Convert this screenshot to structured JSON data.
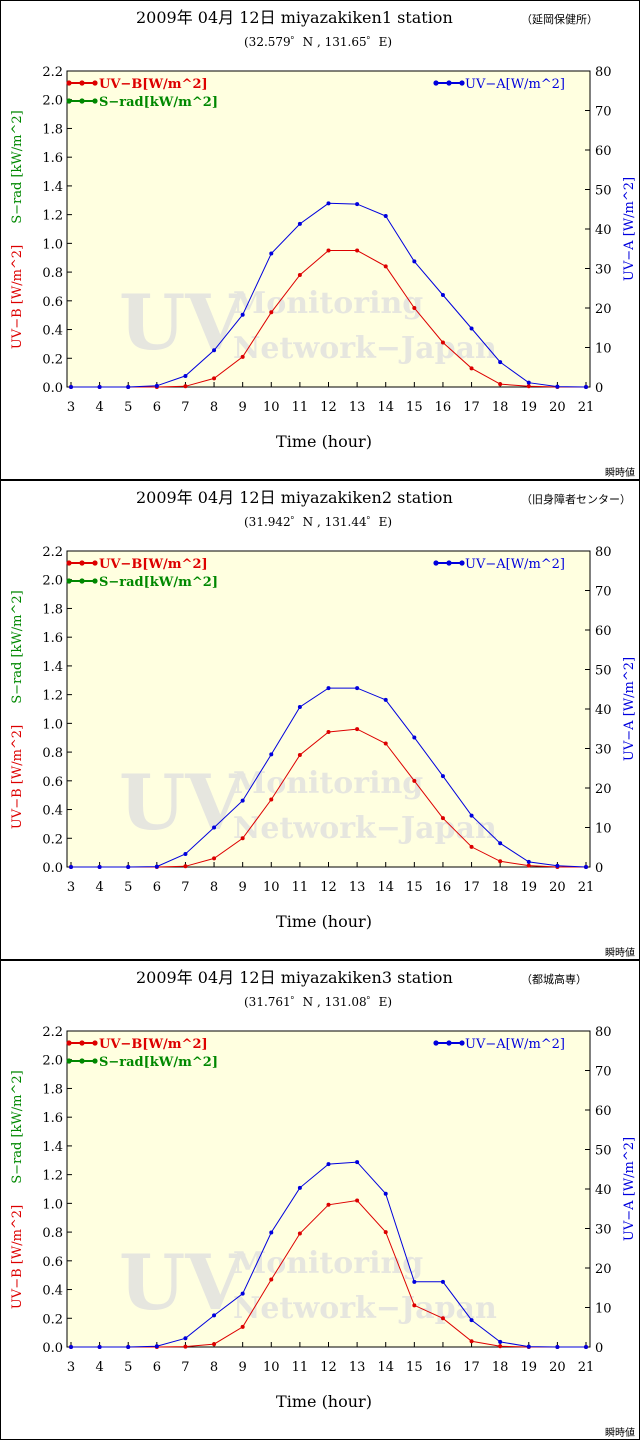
{
  "chart_data": [
    {
      "type": "line",
      "title": "2009年 04月 12日       miyazakiken1 station",
      "site": "（延岡保健所）",
      "coords": "(32.579゜N ,  131.65゜E)",
      "xlabel": "Time (hour)",
      "ylabel_left_uvb": "UV−B [W/m^2]",
      "ylabel_left_srad": "S−rad [kW/m^2]",
      "ylabel_right": "UV−A [W/m^2]",
      "note": "瞬時値",
      "x": [
        3,
        4,
        5,
        6,
        7,
        8,
        9,
        10,
        11,
        12,
        13,
        14,
        15,
        16,
        17,
        18,
        19,
        20,
        21
      ],
      "ylim_left": [
        0,
        2.2
      ],
      "ylim_right": [
        0,
        80
      ],
      "yticks_left": [
        "0.0",
        "0.2",
        "0.4",
        "0.6",
        "0.8",
        "1.0",
        "1.2",
        "1.4",
        "1.6",
        "1.8",
        "2.0",
        "2.2"
      ],
      "yticks_right": [
        "0",
        "10",
        "20",
        "30",
        "40",
        "50",
        "60",
        "70",
        "80"
      ],
      "legend": {
        "uvb": "UV−B[W/m^2]",
        "srad": "S−rad[kW/m^2]",
        "uva": "UV−A[W/m^2]"
      },
      "series": [
        {
          "name": "UV−B[W/m^2]",
          "axis": "left",
          "color": "#dd0000",
          "values": [
            0,
            0,
            0,
            0,
            0.005,
            0.06,
            0.21,
            0.52,
            0.78,
            0.95,
            0.95,
            0.84,
            0.55,
            0.31,
            0.13,
            0.02,
            0.005,
            0,
            0
          ]
        },
        {
          "name": "UV−A[W/m^2]",
          "axis": "right",
          "color": "#0000dd",
          "values": [
            0,
            0,
            0,
            0.3,
            2.8,
            9.3,
            18.3,
            33.8,
            41.3,
            46.5,
            46.3,
            43.3,
            31.8,
            23.3,
            14.8,
            6.3,
            1.1,
            0.1,
            0
          ]
        }
      ],
      "watermark": [
        "UV",
        "Monitoring",
        "Network−Japan"
      ],
      "colors": {
        "plot_bg": "#ffffe0",
        "uvb": "#dd0000",
        "srad": "#008800",
        "uva": "#0000dd"
      }
    },
    {
      "type": "line",
      "title": "2009年 04月 12日       miyazakiken2 station",
      "site": "（旧身障者センター）",
      "coords": "(31.942゜N ,  131.44゜E)",
      "xlabel": "Time (hour)",
      "ylabel_left_uvb": "UV−B [W/m^2]",
      "ylabel_left_srad": "S−rad [kW/m^2]",
      "ylabel_right": "UV−A [W/m^2]",
      "note": "瞬時値",
      "x": [
        3,
        4,
        5,
        6,
        7,
        8,
        9,
        10,
        11,
        12,
        13,
        14,
        15,
        16,
        17,
        18,
        19,
        20,
        21
      ],
      "ylim_left": [
        0,
        2.2
      ],
      "ylim_right": [
        0,
        80
      ],
      "yticks_left": [
        "0.0",
        "0.2",
        "0.4",
        "0.6",
        "0.8",
        "1.0",
        "1.2",
        "1.4",
        "1.6",
        "1.8",
        "2.0",
        "2.2"
      ],
      "yticks_right": [
        "0",
        "10",
        "20",
        "30",
        "40",
        "50",
        "60",
        "70",
        "80"
      ],
      "legend": {
        "uvb": "UV−B[W/m^2]",
        "srad": "S−rad[kW/m^2]",
        "uva": "UV−A[W/m^2]"
      },
      "series": [
        {
          "name": "UV−B[W/m^2]",
          "axis": "left",
          "color": "#dd0000",
          "values": [
            0,
            0,
            0,
            0,
            0.005,
            0.06,
            0.2,
            0.47,
            0.78,
            0.94,
            0.96,
            0.86,
            0.6,
            0.34,
            0.14,
            0.04,
            0.01,
            0,
            0
          ]
        },
        {
          "name": "UV−A[W/m^2]",
          "axis": "right",
          "color": "#0000dd",
          "values": [
            0,
            0,
            0,
            0.1,
            3.3,
            10.0,
            16.8,
            28.5,
            40.5,
            45.3,
            45.3,
            42.3,
            32.8,
            23.0,
            13.0,
            6.0,
            1.3,
            0.3,
            0
          ]
        }
      ],
      "watermark": [
        "UV",
        "Monitoring",
        "Network−Japan"
      ],
      "colors": {
        "plot_bg": "#ffffe0",
        "uvb": "#dd0000",
        "srad": "#008800",
        "uva": "#0000dd"
      }
    },
    {
      "type": "line",
      "title": "2009年 04月 12日       miyazakiken3 station",
      "site": "（都城高専）",
      "coords": "(31.761゜N ,  131.08゜E)",
      "xlabel": "Time (hour)",
      "ylabel_left_uvb": "UV−B [W/m^2]",
      "ylabel_left_srad": "S−rad [kW/m^2]",
      "ylabel_right": "UV−A [W/m^2]",
      "note": "瞬時値",
      "x": [
        3,
        4,
        5,
        6,
        7,
        8,
        9,
        10,
        11,
        12,
        13,
        14,
        15,
        16,
        17,
        18,
        19,
        20,
        21
      ],
      "ylim_left": [
        0,
        2.2
      ],
      "ylim_right": [
        0,
        80
      ],
      "yticks_left": [
        "0.0",
        "0.2",
        "0.4",
        "0.6",
        "0.8",
        "1.0",
        "1.2",
        "1.4",
        "1.6",
        "1.8",
        "2.0",
        "2.2"
      ],
      "yticks_right": [
        "0",
        "10",
        "20",
        "30",
        "40",
        "50",
        "60",
        "70",
        "80"
      ],
      "legend": {
        "uvb": "UV−B[W/m^2]",
        "srad": "S−rad[kW/m^2]",
        "uva": "UV−A[W/m^2]"
      },
      "series": [
        {
          "name": "UV−B[W/m^2]",
          "axis": "left",
          "color": "#dd0000",
          "values": [
            0,
            0,
            0,
            0,
            0.003,
            0.02,
            0.14,
            0.47,
            0.79,
            0.99,
            1.02,
            0.8,
            0.29,
            0.2,
            0.04,
            0.005,
            0,
            0,
            0
          ]
        },
        {
          "name": "UV−A[W/m^2]",
          "axis": "right",
          "color": "#0000dd",
          "values": [
            0,
            0,
            0,
            0.2,
            2.2,
            8.0,
            13.5,
            29.0,
            40.3,
            46.3,
            46.8,
            38.8,
            16.5,
            16.5,
            6.8,
            1.3,
            0.1,
            0,
            0
          ]
        }
      ],
      "watermark": [
        "UV",
        "Monitoring",
        "Network−Japan"
      ],
      "colors": {
        "plot_bg": "#ffffe0",
        "uvb": "#dd0000",
        "srad": "#008800",
        "uva": "#0000dd"
      }
    }
  ]
}
